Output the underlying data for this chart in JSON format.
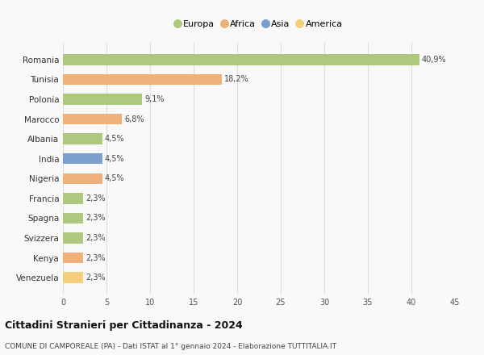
{
  "categories": [
    "Romania",
    "Tunisia",
    "Polonia",
    "Marocco",
    "Albania",
    "India",
    "Nigeria",
    "Francia",
    "Spagna",
    "Svizzera",
    "Kenya",
    "Venezuela"
  ],
  "values": [
    40.9,
    18.2,
    9.1,
    6.8,
    4.5,
    4.5,
    4.5,
    2.3,
    2.3,
    2.3,
    2.3,
    2.3
  ],
  "labels": [
    "40,9%",
    "18,2%",
    "9,1%",
    "6,8%",
    "4,5%",
    "4,5%",
    "4,5%",
    "2,3%",
    "2,3%",
    "2,3%",
    "2,3%",
    "2,3%"
  ],
  "colors": [
    "#adc97e",
    "#f0b07a",
    "#adc97e",
    "#f0b07a",
    "#adc97e",
    "#7b9fcc",
    "#f0b07a",
    "#adc97e",
    "#adc97e",
    "#adc97e",
    "#f0b07a",
    "#f5d07a"
  ],
  "legend": [
    {
      "label": "Europa",
      "color": "#adc97e"
    },
    {
      "label": "Africa",
      "color": "#f0b07a"
    },
    {
      "label": "Asia",
      "color": "#7b9fcc"
    },
    {
      "label": "America",
      "color": "#f5d07a"
    }
  ],
  "title": "Cittadini Stranieri per Cittadinanza - 2024",
  "subtitle": "COMUNE DI CAMPOREALE (PA) - Dati ISTAT al 1° gennaio 2024 - Elaborazione TUTTITALIA.IT",
  "xlim": [
    0,
    45
  ],
  "xticks": [
    0,
    5,
    10,
    15,
    20,
    25,
    30,
    35,
    40,
    45
  ],
  "background_color": "#f9f9f9",
  "grid_color": "#dddddd",
  "bar_height": 0.55
}
